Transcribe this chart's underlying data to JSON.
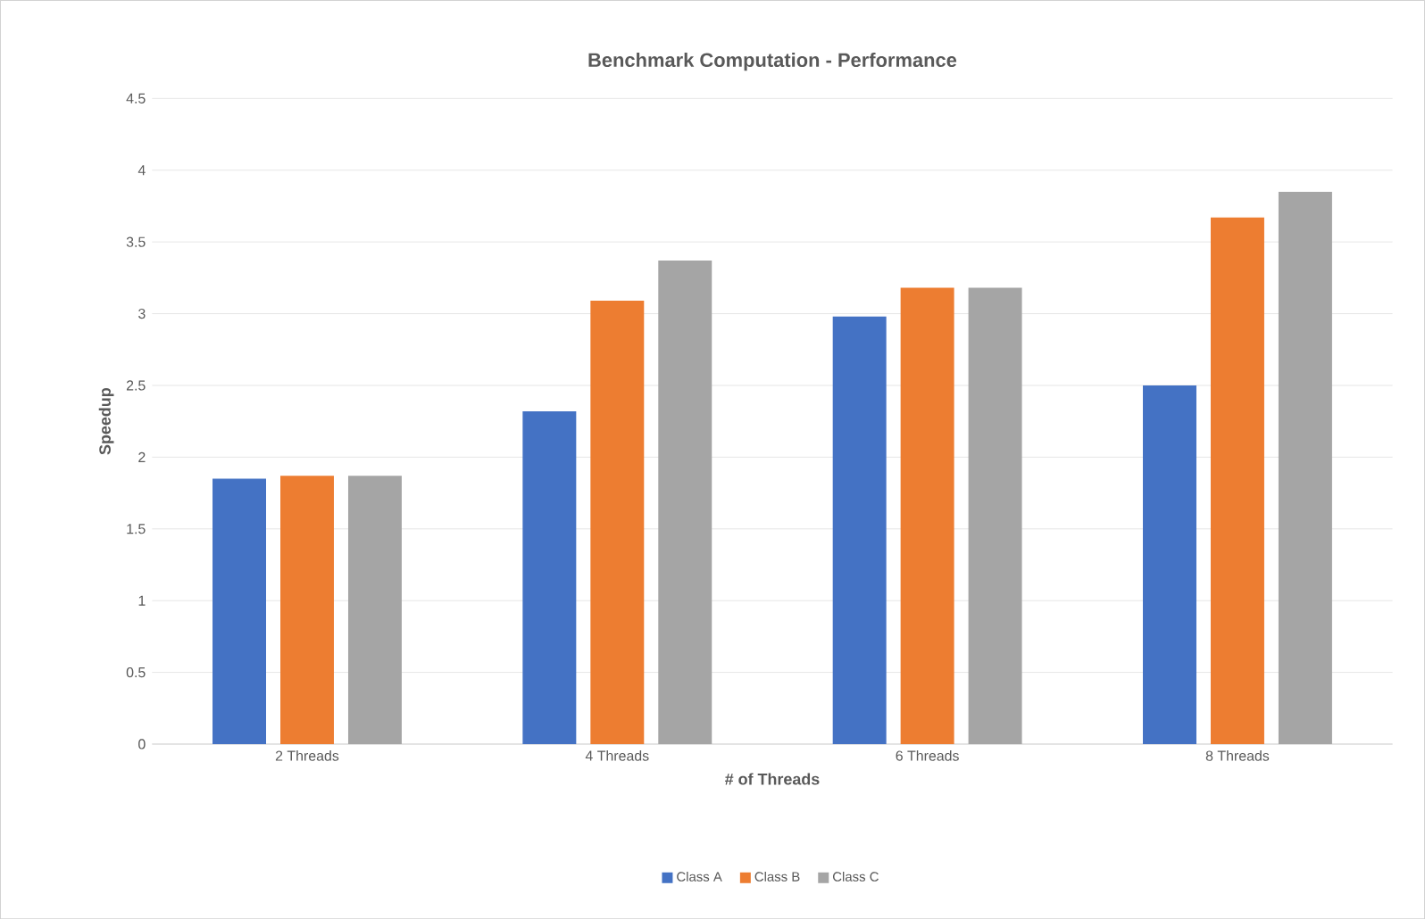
{
  "chart_data": {
    "type": "bar",
    "title": "Benchmark Computation - Performance",
    "xlabel": "# of Threads",
    "ylabel": "Speedup",
    "categories": [
      "2 Threads",
      "4 Threads",
      "6 Threads",
      "8 Threads"
    ],
    "series": [
      {
        "name": "Class A",
        "color": "#4472c4",
        "values": [
          1.85,
          2.32,
          2.98,
          2.5
        ]
      },
      {
        "name": "Class B",
        "color": "#ed7d31",
        "values": [
          1.87,
          3.09,
          3.18,
          3.67
        ]
      },
      {
        "name": "Class C",
        "color": "#a5a5a5",
        "values": [
          1.87,
          3.37,
          3.18,
          3.85
        ]
      }
    ],
    "ylim": [
      0,
      4.5
    ],
    "yticks": [
      0,
      0.5,
      1,
      1.5,
      2,
      2.5,
      3,
      3.5,
      4,
      4.5
    ],
    "grid": "y",
    "legend": "bottom"
  }
}
